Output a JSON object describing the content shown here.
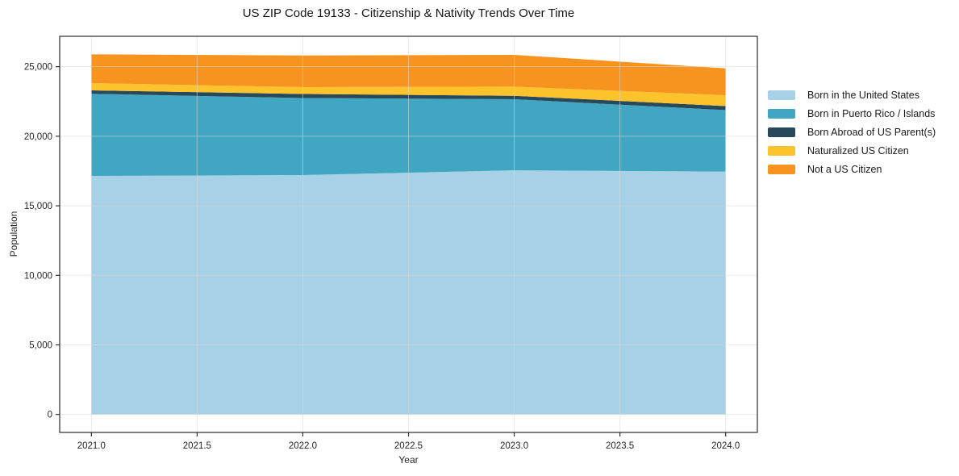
{
  "chart_data": {
    "type": "area",
    "stacked": true,
    "title": "US ZIP Code 19133 - Citizenship & Nativity Trends Over Time",
    "xlabel": "Year",
    "ylabel": "Population",
    "x": [
      2021,
      2022,
      2023,
      2024
    ],
    "series": [
      {
        "name": "Born in the United States",
        "color": "#a7d1e6",
        "values": [
          17150,
          17210,
          17550,
          17460
        ]
      },
      {
        "name": "Born in Puerto Rico / Islands",
        "color": "#41a6c2",
        "values": [
          5900,
          5540,
          5110,
          4420
        ]
      },
      {
        "name": "Born Abroad of US Parent(s)",
        "color": "#28495c",
        "values": [
          250,
          290,
          250,
          290
        ]
      },
      {
        "name": "Naturalized US Citizen",
        "color": "#fcc32d",
        "values": [
          520,
          490,
          660,
          780
        ]
      },
      {
        "name": "Not a US Citizen",
        "color": "#f7941f",
        "values": [
          2070,
          2280,
          2280,
          1930
        ]
      }
    ],
    "totals": [
      25890,
      25810,
      25850,
      24880
    ],
    "x_ticks": [
      2021.0,
      2021.5,
      2022.0,
      2022.5,
      2023.0,
      2023.5,
      2024.0
    ],
    "x_tick_labels": [
      "2021.0",
      "2021.5",
      "2022.0",
      "2022.5",
      "2023.0",
      "2023.5",
      "2024.0"
    ],
    "y_ticks": [
      0,
      5000,
      10000,
      15000,
      20000,
      25000
    ],
    "y_tick_labels": [
      "0",
      "5,000",
      "10,000",
      "15,000",
      "20,000",
      "25,000"
    ],
    "xlim": [
      2020.85,
      2024.15
    ],
    "ylim": [
      -1294,
      27185
    ],
    "grid": true,
    "grid_color": "#d9d9d9",
    "spine_color": "#2b2b2b",
    "tick_label_color": "#262626",
    "legend_position": "right",
    "legend_frame": false
  }
}
